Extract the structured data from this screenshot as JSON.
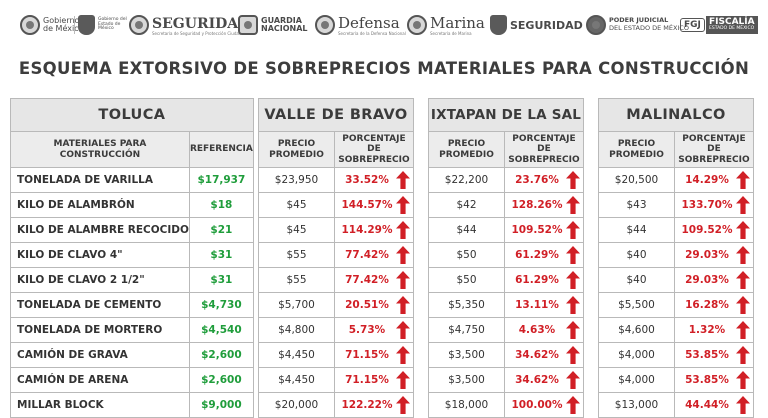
{
  "logos": {
    "gobierno": "Gobierno de México",
    "estado": "Gobierno del Estado de México",
    "seguridad": "SEGURIDAD",
    "seguridad_sub": "Secretaría de Seguridad y Protección Ciudadana",
    "guardia_1": "GUARDIA",
    "guardia_2": "NACIONAL",
    "defensa": "Defensa",
    "defensa_sub": "Secretaría de la Defensa Nacional",
    "marina": "Marina",
    "marina_sub": "Secretaría de Marina",
    "seguridad_edomex": "SEGURIDAD",
    "poder_1": "PODER JUDICIAL",
    "poder_2": "DEL ESTADO DE MÉXICO",
    "fgj": "FGJ",
    "fiscalia_1": "FISCALÍA",
    "fiscalia_2": "ESTADO DE MÉXICO"
  },
  "title": "ESQUEMA EXTORSIVO DE SOBREPRECIOS MATERIALES PARA CONSTRUCCIÓN",
  "toluca": {
    "city": "TOLUCA",
    "col_material": "MATERIALES PARA CONSTRUCCIÓN",
    "col_ref": "REFERENCIA",
    "rows": [
      {
        "material": "TONELADA DE VARILLA",
        "ref": "$17,937"
      },
      {
        "material": "KILO DE ALAMBRÓN",
        "ref": "$18"
      },
      {
        "material": "KILO DE ALAMBRE RECOCIDO",
        "ref": "$21"
      },
      {
        "material": "KILO DE CLAVO 4\"",
        "ref": "$31"
      },
      {
        "material": "KILO DE CLAVO 2 1/2\"",
        "ref": "$31"
      },
      {
        "material": "TONELADA DE CEMENTO",
        "ref": "$4,730"
      },
      {
        "material": "TONELADA DE MORTERO",
        "ref": "$4,540"
      },
      {
        "material": "CAMIÓN DE GRAVA",
        "ref": "$2,600"
      },
      {
        "material": "CAMIÓN DE ARENA",
        "ref": "$2,600"
      },
      {
        "material": "MILLAR BLOCK",
        "ref": "$9,000"
      }
    ]
  },
  "cities": [
    {
      "city": "VALLE DE BRAVO",
      "col_price": "PRECIO PROMEDIO",
      "col_pct": "PORCENTAJE DE SOBREPRECIO",
      "rows": [
        {
          "price": "$23,950",
          "pct": "33.52%"
        },
        {
          "price": "$45",
          "pct": "144.57%"
        },
        {
          "price": "$45",
          "pct": "114.29%"
        },
        {
          "price": "$55",
          "pct": "77.42%"
        },
        {
          "price": "$55",
          "pct": "77.42%"
        },
        {
          "price": "$5,700",
          "pct": "20.51%"
        },
        {
          "price": "$4,800",
          "pct": "5.73%"
        },
        {
          "price": "$4,450",
          "pct": "71.15%"
        },
        {
          "price": "$4,450",
          "pct": "71.15%"
        },
        {
          "price": "$20,000",
          "pct": "122.22%"
        }
      ]
    },
    {
      "city": "IXTAPAN DE LA SAL",
      "col_price": "PRECIO PROMEDIO",
      "col_pct": "PORCENTAJE DE SOBREPRECIO",
      "rows": [
        {
          "price": "$22,200",
          "pct": "23.76%"
        },
        {
          "price": "$42",
          "pct": "128.26%"
        },
        {
          "price": "$44",
          "pct": "109.52%"
        },
        {
          "price": "$50",
          "pct": "61.29%"
        },
        {
          "price": "$50",
          "pct": "61.29%"
        },
        {
          "price": "$5,350",
          "pct": "13.11%"
        },
        {
          "price": "$4,750",
          "pct": "4.63%"
        },
        {
          "price": "$3,500",
          "pct": "34.62%"
        },
        {
          "price": "$3,500",
          "pct": "34.62%"
        },
        {
          "price": "$18,000",
          "pct": "100.00%"
        }
      ]
    },
    {
      "city": "MALINALCO",
      "col_price": "PRECIO PROMEDIO",
      "col_pct": "PORCENTAJE DE SOBREPRECIO",
      "rows": [
        {
          "price": "$20,500",
          "pct": "14.29%"
        },
        {
          "price": "$43",
          "pct": "133.70%"
        },
        {
          "price": "$44",
          "pct": "109.52%"
        },
        {
          "price": "$40",
          "pct": "29.03%"
        },
        {
          "price": "$40",
          "pct": "29.03%"
        },
        {
          "price": "$5,500",
          "pct": "16.28%"
        },
        {
          "price": "$4,600",
          "pct": "1.32%"
        },
        {
          "price": "$4,000",
          "pct": "53.85%"
        },
        {
          "price": "$4,000",
          "pct": "53.85%"
        },
        {
          "price": "$13,000",
          "pct": "44.44%"
        }
      ]
    }
  ],
  "icons": {
    "increase": "red-up-arrow-icon"
  },
  "colors": {
    "reference_green": "#1f9d3b",
    "overprice_red": "#d11f26",
    "header_gray": "#e6e6e6"
  }
}
